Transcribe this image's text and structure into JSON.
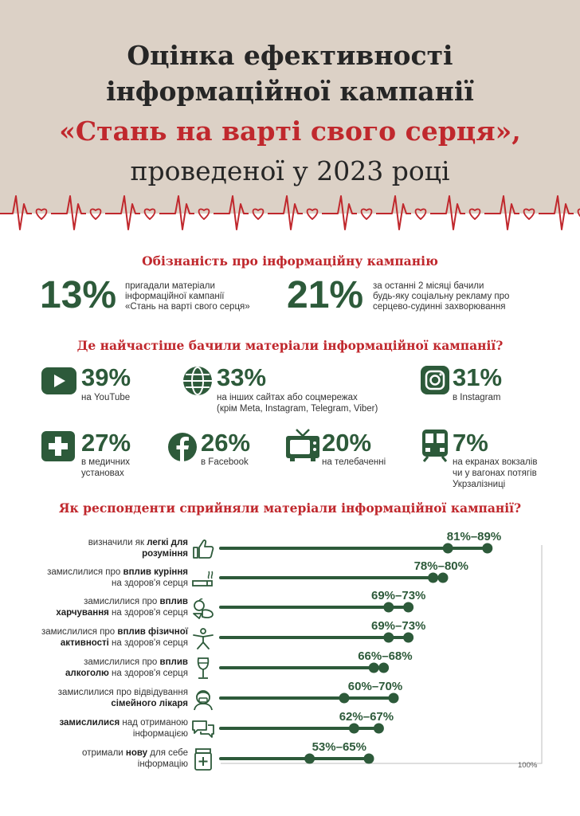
{
  "header": {
    "line1": "Оцінка ефективності",
    "line2": "інформаційної кампанії",
    "line3": "«Стань на варті свого серця»,",
    "line4": "проведеної у 2023 році"
  },
  "awareness": {
    "title": "Обізнаність про інформаційну кампанію",
    "stat1": {
      "value": "13%",
      "line1": "пригадали матеріали",
      "line2": "інформаційної кампанії",
      "line3": "«Стань на варті свого серця»"
    },
    "stat2": {
      "value": "21%",
      "line1": "за останні 2 місяці бачили",
      "line2": "будь-яку соціальну рекламу про",
      "line3": "серцево-судинні захворювання"
    }
  },
  "channels": {
    "title": "Де найчастіше бачили матеріали інформаційної кампанії?",
    "youtube": {
      "value": "39%",
      "line1": "на YouTube"
    },
    "other": {
      "value": "33%",
      "line1": "на інших сайтах або соцмережах",
      "line2": "(крім Meta, Instagram, Telegram, Viber)"
    },
    "instagram": {
      "value": "31%",
      "line1": "в Instagram"
    },
    "medical": {
      "value": "27%",
      "line1": "в медичних",
      "line2": "установах"
    },
    "facebook": {
      "value": "26%",
      "line1": "в Facebook"
    },
    "tv": {
      "value": "20%",
      "line1": "на телебаченні"
    },
    "train": {
      "value": "7%",
      "line1": "на екранах вокзалів",
      "line2": "чи у вагонах потягів",
      "line3": "Укрзалізниці"
    }
  },
  "perception": {
    "title": "Як респонденти сприйняли матеріали інформаційної кампанії?",
    "axis_max_label": "100%",
    "rows": [
      {
        "pre": "визначили як ",
        "b1": "легкі для",
        "b2": "розуміння",
        "post2": ""
      },
      {
        "pre": "замислилися про ",
        "b1": "вплив куріння",
        "b2": "",
        "post2": "на здоров'я серця"
      },
      {
        "pre": "замислилися про ",
        "b1": "вплив",
        "b2": "харчування",
        "post2": " на здоров'я серця"
      },
      {
        "pre": "замислилися про ",
        "b1": "вплив фізичної",
        "b2": "активності",
        "post2": " на здоров'я серця"
      },
      {
        "pre": "замислилися про ",
        "b1": "вплив",
        "b2": "алкоголю",
        "post2": " на здоров'я серця"
      },
      {
        "pre": "замислилися про відвідування",
        "b1": "",
        "b2": "сімейного лікаря",
        "post2": ""
      },
      {
        "pre": "",
        "b1": "замислилися",
        "pre_after": " над отриманою",
        "b2": "",
        "post2": "інформацією"
      },
      {
        "pre": "отримали ",
        "b1": "нову",
        "pre_after": " для себе",
        "b2": "",
        "post2": "інформацію"
      }
    ]
  },
  "chart_data": {
    "type": "dumbbell",
    "title": "Як респонденти сприйняли матеріали інформаційної кампанії?",
    "xlim": [
      0,
      100
    ],
    "x_max_label": "100%",
    "categories": [
      "визначили як легкі для розуміння",
      "замислилися про вплив куріння на здоров'я серця",
      "замислилися про вплив харчування на здоров'я серця",
      "замислилися про вплив фізичної активності на здоров'я серця",
      "замислилися про вплив алкоголю на здоров'я серця",
      "замислилися про відвідування сімейного лікаря",
      "замислилися над отриманою інформацією",
      "отримали нову для себе інформацію"
    ],
    "low": [
      81,
      78,
      69,
      69,
      66,
      60,
      62,
      53
    ],
    "high": [
      89,
      80,
      73,
      73,
      68,
      70,
      67,
      65
    ],
    "labels": [
      "81%–89%",
      "78%–80%",
      "69%–73%",
      "69%–73%",
      "66%–68%",
      "60%–70%",
      "62%–67%",
      "53%–65%"
    ],
    "colors": {
      "line": "#2d5a3a",
      "dot": "#2d5a3a",
      "frame": "#bcbcbc"
    }
  },
  "colors": {
    "green": "#2d5a3a",
    "red": "#c0282d",
    "beige": "#dcd1c6"
  },
  "icons": [
    "youtube-icon",
    "globe-icon",
    "instagram-icon",
    "medical-cross-icon",
    "facebook-icon",
    "tv-icon",
    "train-icon",
    "thumbs-up-icon",
    "cigarette-icon",
    "food-icon",
    "exercise-icon",
    "wine-glass-icon",
    "doctor-icon",
    "chat-icon",
    "pill-box-icon"
  ]
}
